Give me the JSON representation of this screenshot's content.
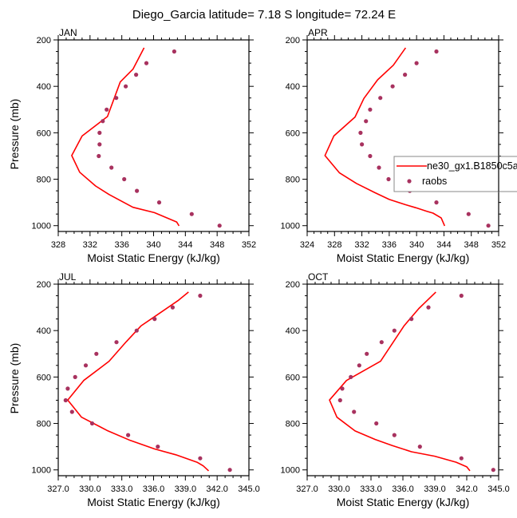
{
  "title": "Diego_Garcia  latitude= 7.18 S longitude= 72.24 E",
  "legend": {
    "placement": "right, attached to APR panel",
    "entries": [
      {
        "name": "ne30_gx1.B1850c5a",
        "kind": "line",
        "color": "#ff0000"
      },
      {
        "name": "raobs",
        "kind": "marker",
        "color": "#a8325f"
      }
    ]
  },
  "chart_data": [
    {
      "type": "line",
      "panel": "JAN",
      "title": "JAN",
      "xlabel": "Moist Static Energy (kJ/kg)",
      "ylabel": "Pressure (mb)",
      "xlim": [
        328,
        352
      ],
      "xticks": [
        328,
        332,
        336,
        340,
        344,
        348,
        352
      ],
      "xtick_labels": [
        "328",
        "332",
        "336",
        "340",
        "344",
        "348",
        "352"
      ],
      "x_minor_step": 1,
      "ylim": [
        200,
        1025
      ],
      "y_inverted": true,
      "yticks": [
        200,
        400,
        600,
        800,
        1000
      ],
      "ytick_labels": [
        "200",
        "400",
        "600",
        "800",
        "1000"
      ],
      "y_minor_step": 50,
      "show_ylabel": true,
      "grid": false,
      "series": [
        {
          "name": "ne30_gx1.B1850c5a",
          "kind": "line",
          "color": "#ff0000",
          "x": [
            338.8,
            337.4,
            335.8,
            334.2,
            331.0,
            329.7,
            330.7,
            332.7,
            334.4,
            337.4,
            340.1,
            342.9,
            343.2
          ],
          "y": [
            234,
            326,
            381,
            530,
            614,
            698,
            770,
            829,
            866,
            921,
            944,
            984,
            1001
          ]
        },
        {
          "name": "raobs",
          "kind": "scatter",
          "color": "#a8325f",
          "x": [
            342.6,
            339.1,
            337.8,
            336.5,
            335.3,
            334.1,
            333.6,
            333.2,
            333.2,
            333.1,
            334.7,
            336.3,
            337.9,
            340.7,
            344.8,
            348.3
          ],
          "y": [
            250,
            300,
            350,
            400,
            450,
            500,
            550,
            600,
            650,
            700,
            750,
            800,
            850,
            900,
            950,
            1000
          ]
        }
      ]
    },
    {
      "type": "line",
      "panel": "APR",
      "title": "APR",
      "xlabel": "Moist Static Energy (kJ/kg)",
      "ylabel": "",
      "xlim": [
        324,
        352
      ],
      "xticks": [
        324,
        328,
        332,
        336,
        340,
        344,
        348,
        352
      ],
      "xtick_labels": [
        "324",
        "328",
        "332",
        "336",
        "340",
        "344",
        "348",
        "352"
      ],
      "x_minor_step": 1,
      "ylim": [
        200,
        1025
      ],
      "y_inverted": true,
      "yticks": [
        200,
        400,
        600,
        800,
        1000
      ],
      "ytick_labels": [
        "200",
        "400",
        "600",
        "800",
        "1000"
      ],
      "y_minor_step": 50,
      "show_ylabel": false,
      "grid": false,
      "series": [
        {
          "name": "ne30_gx1.B1850c5a",
          "kind": "line",
          "color": "#ff0000",
          "x": [
            338.4,
            336.6,
            334.3,
            332.3,
            331.0,
            327.9,
            326.6,
            328.7,
            331.2,
            333.9,
            336.0,
            338.4,
            339.9,
            341.5,
            342.4,
            343.6,
            344.1
          ],
          "y": [
            234,
            309,
            372,
            452,
            532,
            614,
            698,
            772,
            818,
            858,
            887,
            910,
            923,
            938,
            946,
            967,
            1001
          ]
        },
        {
          "name": "raobs",
          "kind": "scatter",
          "color": "#a8325f",
          "x": [
            342.9,
            340.0,
            338.3,
            336.5,
            334.7,
            333.2,
            332.6,
            331.8,
            332.0,
            333.2,
            334.5,
            335.9,
            339.0,
            342.9,
            347.6,
            350.5
          ],
          "y": [
            250,
            300,
            350,
            400,
            450,
            500,
            550,
            600,
            650,
            700,
            750,
            800,
            850,
            900,
            950,
            1000
          ]
        }
      ]
    },
    {
      "type": "line",
      "panel": "JUL",
      "title": "JUL",
      "xlabel": "Moist Static Energy (kJ/kg)",
      "ylabel": "Pressure (mb)",
      "xlim": [
        327,
        345
      ],
      "xticks": [
        327,
        330,
        333,
        336,
        339,
        342,
        345
      ],
      "xtick_labels": [
        "327.0",
        "330.0",
        "333.0",
        "336.0",
        "339.0",
        "342.0",
        "345.0"
      ],
      "x_minor_step": 0.75,
      "ylim": [
        200,
        1025
      ],
      "y_inverted": true,
      "yticks": [
        200,
        400,
        600,
        800,
        1000
      ],
      "ytick_labels": [
        "200",
        "400",
        "600",
        "800",
        "1000"
      ],
      "y_minor_step": 50,
      "show_ylabel": true,
      "grid": false,
      "series": [
        {
          "name": "ne30_gx1.B1850c5a",
          "kind": "line",
          "color": "#ff0000",
          "x": [
            339.3,
            338.3,
            336.1,
            334.8,
            333.4,
            331.8,
            329.4,
            327.9,
            329.2,
            331.7,
            333.8,
            336.1,
            338.1,
            340.1,
            340.7,
            341.2
          ],
          "y": [
            234,
            271,
            340,
            380,
            449,
            532,
            615,
            699,
            773,
            832,
            873,
            910,
            935,
            967,
            983,
            1004
          ]
        },
        {
          "name": "raobs",
          "kind": "scatter",
          "color": "#a8325f",
          "x": [
            340.4,
            337.8,
            336.1,
            334.4,
            332.5,
            330.6,
            329.6,
            328.6,
            327.9,
            327.7,
            328.3,
            330.2,
            333.6,
            336.4,
            340.4,
            343.2
          ],
          "y": [
            250,
            300,
            350,
            400,
            450,
            500,
            550,
            600,
            650,
            700,
            750,
            800,
            850,
            900,
            950,
            1000
          ]
        }
      ]
    },
    {
      "type": "line",
      "panel": "OCT",
      "title": "OCT",
      "xlabel": "Moist Static Energy (kJ/kg)",
      "ylabel": "",
      "xlim": [
        327,
        345
      ],
      "xticks": [
        327,
        330,
        333,
        336,
        339,
        342,
        345
      ],
      "xtick_labels": [
        "327.0",
        "330.0",
        "333.0",
        "336.0",
        "339.0",
        "342.0",
        "345.0"
      ],
      "x_minor_step": 0.75,
      "ylim": [
        200,
        1025
      ],
      "y_inverted": true,
      "yticks": [
        200,
        400,
        600,
        800,
        1000
      ],
      "ytick_labels": [
        "200",
        "400",
        "600",
        "800",
        "1000"
      ],
      "y_minor_step": 50,
      "show_ylabel": false,
      "grid": false,
      "series": [
        {
          "name": "ne30_gx1.B1850c5a",
          "kind": "line",
          "color": "#ff0000",
          "x": [
            339.1,
            337.5,
            336.1,
            333.9,
            330.7,
            329.1,
            329.8,
            331.5,
            333.4,
            335.0,
            336.8,
            339.0,
            341.0,
            342.0,
            342.3
          ],
          "y": [
            234,
            305,
            380,
            532,
            615,
            699,
            773,
            832,
            869,
            895,
            922,
            941,
            967,
            987,
            1004
          ]
        },
        {
          "name": "raobs",
          "kind": "scatter",
          "color": "#a8325f",
          "x": [
            341.5,
            338.4,
            336.8,
            335.2,
            334.0,
            332.6,
            331.9,
            331.1,
            330.3,
            330.1,
            331.4,
            333.5,
            335.2,
            337.6,
            341.5,
            344.5
          ],
          "y": [
            250,
            300,
            350,
            400,
            450,
            500,
            550,
            600,
            650,
            700,
            750,
            800,
            850,
            900,
            950,
            1000
          ]
        }
      ]
    }
  ]
}
